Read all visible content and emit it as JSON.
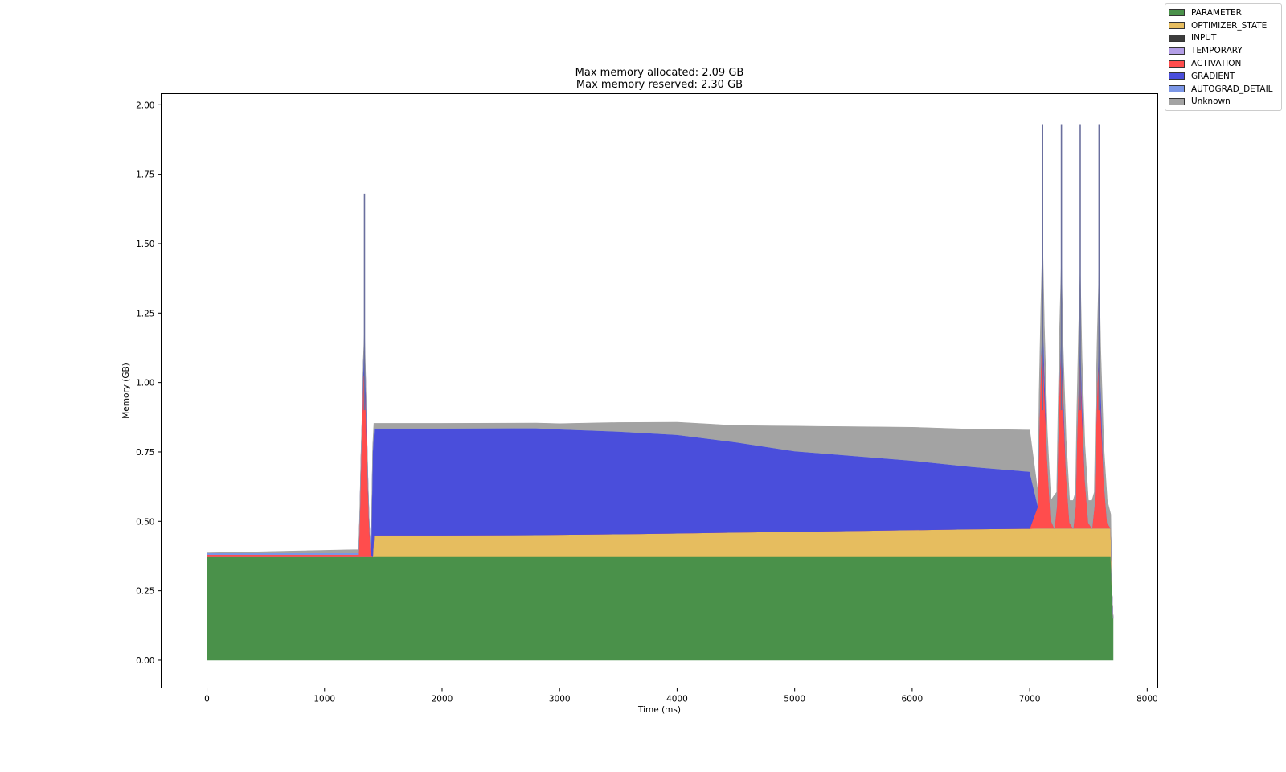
{
  "chart_data": {
    "type": "area",
    "title": "Max memory allocated: 2.09 GB\nMax memory reserved: 2.30 GB",
    "title_lines": [
      "Max memory allocated: 2.09 GB",
      "Max memory reserved: 2.30 GB"
    ],
    "xlabel": "Time (ms)",
    "ylabel": "Memory (GB)",
    "xlim": [
      -390,
      8090
    ],
    "ylim": [
      -0.1,
      2.04
    ],
    "xticks": [
      0,
      1000,
      2000,
      3000,
      4000,
      5000,
      6000,
      7000,
      8000
    ],
    "xtick_labels": [
      "0",
      "1000",
      "2000",
      "3000",
      "4000",
      "5000",
      "6000",
      "7000",
      "8000"
    ],
    "yticks": [
      0.0,
      0.25,
      0.5,
      0.75,
      1.0,
      1.25,
      1.5,
      1.75,
      2.0
    ],
    "ytick_labels": [
      "0.00",
      "0.25",
      "0.50",
      "0.75",
      "1.00",
      "1.25",
      "1.50",
      "1.75",
      "2.00"
    ],
    "grid": false,
    "legend_position": "upper-right-outside",
    "x": [
      0,
      1290,
      1300,
      1310,
      1320,
      1330,
      1340,
      1350,
      1360,
      1370,
      1380,
      1395,
      1410,
      1420,
      1430,
      1500,
      2000,
      2800,
      3000,
      3500,
      4000,
      4500,
      5000,
      5500,
      6000,
      6500,
      7000,
      7070,
      7080,
      7095,
      7110,
      7125,
      7150,
      7180,
      7210,
      7230,
      7240,
      7255,
      7270,
      7285,
      7310,
      7340,
      7370,
      7390,
      7400,
      7415,
      7430,
      7445,
      7470,
      7500,
      7530,
      7550,
      7560,
      7575,
      7590,
      7605,
      7630,
      7660,
      7690,
      7700,
      7710
    ],
    "series": [
      {
        "name": "PARAMETER",
        "color": "#4a914a",
        "values": [
          0.372,
          0.372,
          0.372,
          0.372,
          0.372,
          0.372,
          0.372,
          0.372,
          0.372,
          0.372,
          0.372,
          0.372,
          0.372,
          0.372,
          0.372,
          0.372,
          0.372,
          0.372,
          0.372,
          0.372,
          0.372,
          0.372,
          0.372,
          0.372,
          0.372,
          0.372,
          0.372,
          0.372,
          0.372,
          0.372,
          0.372,
          0.372,
          0.372,
          0.372,
          0.372,
          0.372,
          0.372,
          0.372,
          0.372,
          0.372,
          0.372,
          0.372,
          0.372,
          0.372,
          0.372,
          0.372,
          0.372,
          0.372,
          0.372,
          0.372,
          0.372,
          0.372,
          0.372,
          0.372,
          0.372,
          0.372,
          0.372,
          0.372,
          0.372,
          0.25,
          0.15
        ]
      },
      {
        "name": "OPTIMIZER_STATE",
        "color": "#e6bd5f",
        "values": [
          0,
          0,
          0,
          0,
          0,
          0,
          0,
          0,
          0,
          0,
          0,
          0,
          0,
          0.078,
          0.078,
          0.078,
          0.078,
          0.079,
          0.08,
          0.082,
          0.085,
          0.088,
          0.091,
          0.094,
          0.097,
          0.1,
          0.102,
          0.103,
          0.103,
          0.103,
          0.103,
          0.103,
          0.103,
          0.103,
          0.103,
          0.103,
          0.103,
          0.103,
          0.103,
          0.103,
          0.103,
          0.103,
          0.103,
          0.103,
          0.103,
          0.103,
          0.103,
          0.103,
          0.103,
          0.103,
          0.103,
          0.103,
          0.103,
          0.103,
          0.103,
          0.103,
          0.103,
          0.103,
          0.103,
          0.0,
          0.0
        ]
      },
      {
        "name": "INPUT",
        "color": "#3c3c3c",
        "values": [
          0,
          0,
          0,
          0,
          0,
          0,
          0,
          0,
          0,
          0,
          0,
          0,
          0,
          0,
          0,
          0,
          0,
          0,
          0,
          0,
          0,
          0,
          0,
          0,
          0,
          0,
          0,
          0,
          0,
          0,
          0,
          0,
          0,
          0,
          0,
          0,
          0,
          0,
          0,
          0,
          0,
          0,
          0,
          0,
          0,
          0,
          0,
          0,
          0,
          0,
          0,
          0,
          0,
          0,
          0,
          0,
          0,
          0,
          0,
          0,
          0
        ]
      },
      {
        "name": "TEMPORARY",
        "color": "#b39ee6",
        "values": [
          0,
          0,
          0,
          0,
          0,
          0,
          0,
          0,
          0,
          0,
          0,
          0,
          0,
          0,
          0,
          0,
          0,
          0,
          0,
          0,
          0,
          0,
          0,
          0,
          0,
          0,
          0,
          0,
          0,
          0,
          0,
          0,
          0,
          0,
          0,
          0,
          0,
          0,
          0,
          0,
          0,
          0,
          0,
          0,
          0,
          0,
          0,
          0,
          0,
          0,
          0,
          0,
          0,
          0,
          0,
          0,
          0,
          0,
          0,
          0,
          0
        ]
      },
      {
        "name": "ACTIVATION",
        "color": "#ff4d4d",
        "values": [
          0.008,
          0.008,
          0.15,
          0.35,
          0.5,
          0.65,
          0.66,
          0.55,
          0.4,
          0.25,
          0.12,
          0.004,
          0,
          0,
          0,
          0,
          0,
          0,
          0,
          0,
          0,
          0,
          0,
          0,
          0,
          0,
          0,
          0.08,
          0.35,
          0.6,
          0.72,
          0.5,
          0.25,
          0.03,
          0.0,
          0.08,
          0.3,
          0.55,
          0.67,
          0.45,
          0.2,
          0.02,
          0.0,
          0.08,
          0.3,
          0.52,
          0.64,
          0.42,
          0.18,
          0.02,
          0.0,
          0.08,
          0.3,
          0.52,
          0.64,
          0.42,
          0.18,
          0.02,
          0.0,
          0.0,
          0.0
        ]
      },
      {
        "name": "GRADIENT",
        "color": "#4a4edb",
        "values": [
          0,
          0,
          0,
          0,
          0,
          0.05,
          0.1,
          0.08,
          0.04,
          0.02,
          0.01,
          0.005,
          0.38,
          0.385,
          0.385,
          0.385,
          0.385,
          0.385,
          0.38,
          0.37,
          0.355,
          0.325,
          0.29,
          0.27,
          0.25,
          0.225,
          0.205,
          0.0,
          0.0,
          0.0,
          0.08,
          0.08,
          0.0,
          0.0,
          0.0,
          0.0,
          0.0,
          0.0,
          0.08,
          0.06,
          0.0,
          0.0,
          0.0,
          0.0,
          0.0,
          0.0,
          0.08,
          0.06,
          0.0,
          0.0,
          0.0,
          0.0,
          0.0,
          0.0,
          0.08,
          0.08,
          0.0,
          0.0,
          0.0,
          0.0,
          0.0
        ]
      },
      {
        "name": "AUTOGRAD_DETAIL",
        "color": "#7b96e6",
        "values": [
          0.006,
          0.006,
          0.006,
          0.006,
          0.006,
          0.0,
          0.0,
          0.0,
          0.0,
          0.0,
          0.0,
          0.0,
          0,
          0,
          0,
          0,
          0,
          0,
          0,
          0,
          0,
          0,
          0,
          0,
          0,
          0,
          0,
          0,
          0,
          0,
          0,
          0,
          0,
          0,
          0,
          0,
          0,
          0,
          0,
          0,
          0,
          0,
          0,
          0,
          0,
          0,
          0,
          0,
          0,
          0,
          0,
          0,
          0,
          0,
          0,
          0,
          0,
          0,
          0,
          0,
          0
        ]
      },
      {
        "name": "Unknown",
        "color": "#a3a3a3",
        "values": [
          0.0,
          0.012,
          0.012,
          0.012,
          0.012,
          0.012,
          0.05,
          0.02,
          0.012,
          0.01,
          0.005,
          0.002,
          0.02,
          0.018,
          0.018,
          0.018,
          0.018,
          0.018,
          0.02,
          0.032,
          0.045,
          0.06,
          0.09,
          0.105,
          0.12,
          0.135,
          0.15,
          0.05,
          0.13,
          0.2,
          0.25,
          0.15,
          0.1,
          0.07,
          0.12,
          0.05,
          0.1,
          0.18,
          0.22,
          0.14,
          0.12,
          0.08,
          0.1,
          0.05,
          0.1,
          0.18,
          0.22,
          0.14,
          0.12,
          0.08,
          0.1,
          0.05,
          0.1,
          0.18,
          0.22,
          0.14,
          0.12,
          0.08,
          0.05,
          0.0,
          0.0
        ]
      }
    ],
    "spikes": [
      {
        "x": 1340,
        "y": 1.68
      },
      {
        "x": 7110,
        "y": 1.93
      },
      {
        "x": 7270,
        "y": 1.93
      },
      {
        "x": 7430,
        "y": 1.93
      },
      {
        "x": 7590,
        "y": 1.93
      }
    ]
  },
  "legend": {
    "items": [
      {
        "label": "PARAMETER",
        "color": "#4a914a"
      },
      {
        "label": "OPTIMIZER_STATE",
        "color": "#e6bd5f"
      },
      {
        "label": "INPUT",
        "color": "#3c3c3c"
      },
      {
        "label": "TEMPORARY",
        "color": "#b39ee6"
      },
      {
        "label": "ACTIVATION",
        "color": "#ff4d4d"
      },
      {
        "label": "GRADIENT",
        "color": "#4a4edb"
      },
      {
        "label": "AUTOGRAD_DETAIL",
        "color": "#7b96e6"
      },
      {
        "label": "Unknown",
        "color": "#a3a3a3"
      }
    ]
  }
}
